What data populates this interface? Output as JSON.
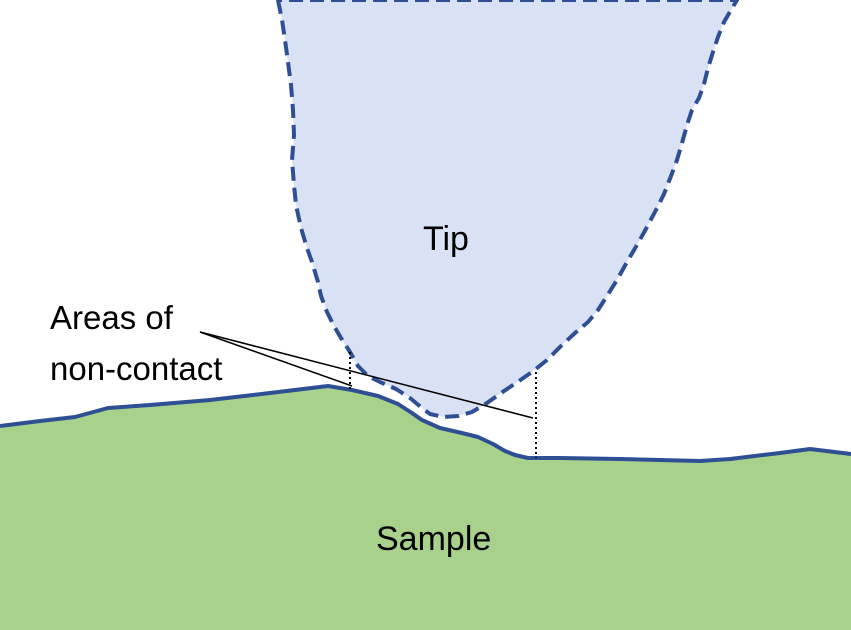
{
  "labels": {
    "tip": "Tip",
    "sample": "Sample",
    "callout_line1": "Areas of",
    "callout_line2": "non-contact"
  },
  "colors": {
    "tip_fill": "#d9e2f4",
    "sample_fill": "#a8d18c",
    "outline": "#2e4f94",
    "callout_line": "#000000",
    "background": "#ffffff"
  }
}
